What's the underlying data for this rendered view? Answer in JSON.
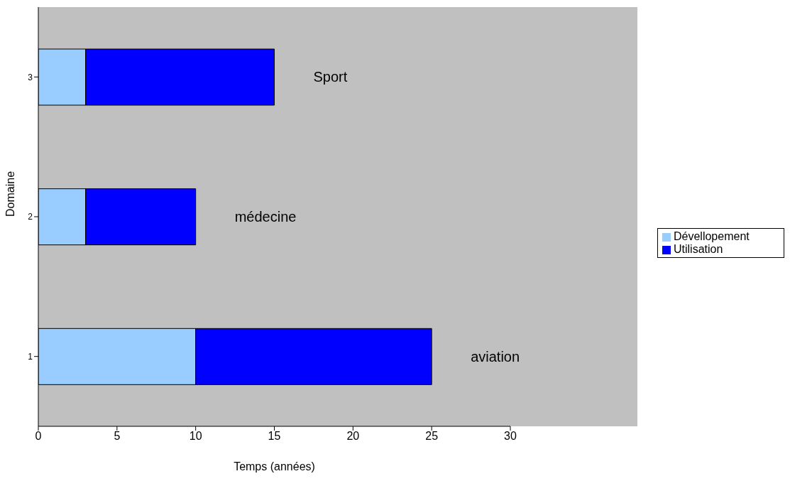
{
  "chart_data": {
    "type": "bar",
    "orientation": "horizontal",
    "stacked": true,
    "xlabel": "Temps (années)",
    "ylabel": "Domaine",
    "categories": [
      "3",
      "2",
      "1"
    ],
    "series": [
      {
        "name": "Dévellopement",
        "color": "#99ccff",
        "values": [
          3,
          3,
          10
        ]
      },
      {
        "name": "Utilisation",
        "color": "#0000ff",
        "values": [
          12,
          7,
          15
        ]
      }
    ],
    "xlim": [
      0,
      30
    ],
    "xticks": [
      0,
      5,
      10,
      15,
      20,
      25,
      30
    ],
    "grid": false,
    "legend": "right",
    "annotations": [
      "Sport",
      "médecine",
      "aviation"
    ]
  }
}
